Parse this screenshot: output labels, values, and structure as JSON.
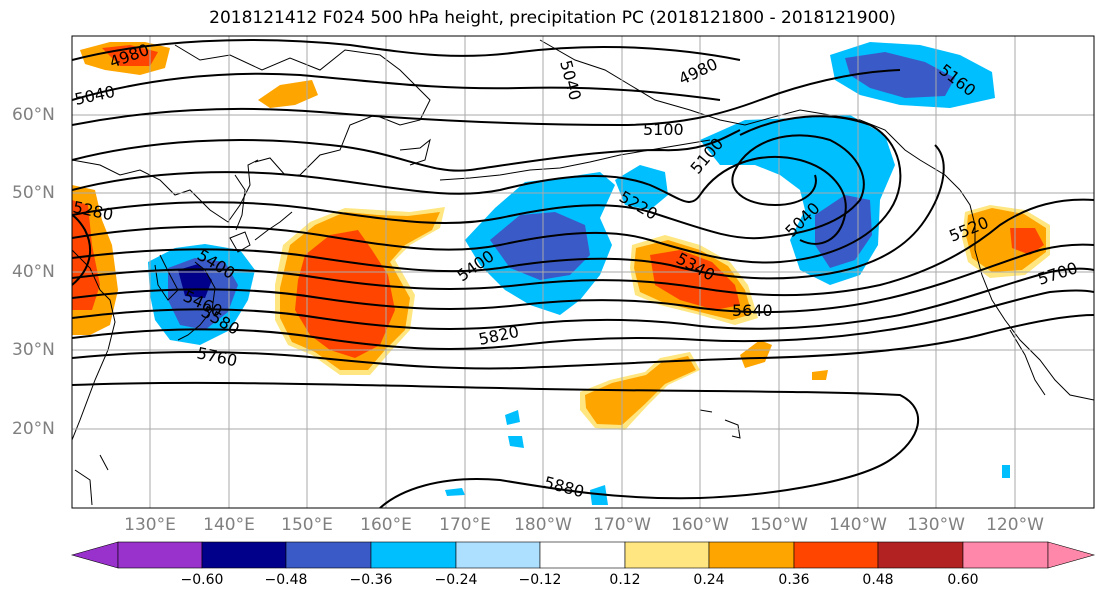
{
  "title": "2018121412 F024 500 hPa height, precipitation PC (2018121800 - 2018121900)",
  "map": {
    "lat_labels": [
      "60°N",
      "50°N",
      "40°N",
      "30°N",
      "20°N"
    ],
    "lon_labels": [
      "130°E",
      "140°E",
      "150°E",
      "160°E",
      "170°E",
      "180°W",
      "170°W",
      "160°W",
      "150°W",
      "140°W",
      "130°W",
      "120°W"
    ],
    "contour_labels": [
      "4980",
      "5040",
      "5040",
      "4980",
      "5160",
      "5100",
      "5100",
      "5220",
      "5040",
      "5520",
      "5280",
      "5400",
      "5460",
      "5580",
      "5400",
      "5340",
      "5640",
      "5700",
      "5820",
      "5760",
      "5880"
    ],
    "contour_color": "#000000"
  },
  "colorbar": {
    "colors": [
      "#9932CC",
      "#00008B",
      "#3A5BC7",
      "#00BFFF",
      "#ADDFFF",
      "#FFFFFF",
      "#FFE680",
      "#FFA500",
      "#FF4500",
      "#B22222",
      "#FF88AA"
    ],
    "tick_labels": [
      "−0.60",
      "−0.48",
      "−0.36",
      "−0.24",
      "−0.12",
      "0.12",
      "0.24",
      "0.36",
      "0.48",
      "0.60"
    ]
  }
}
